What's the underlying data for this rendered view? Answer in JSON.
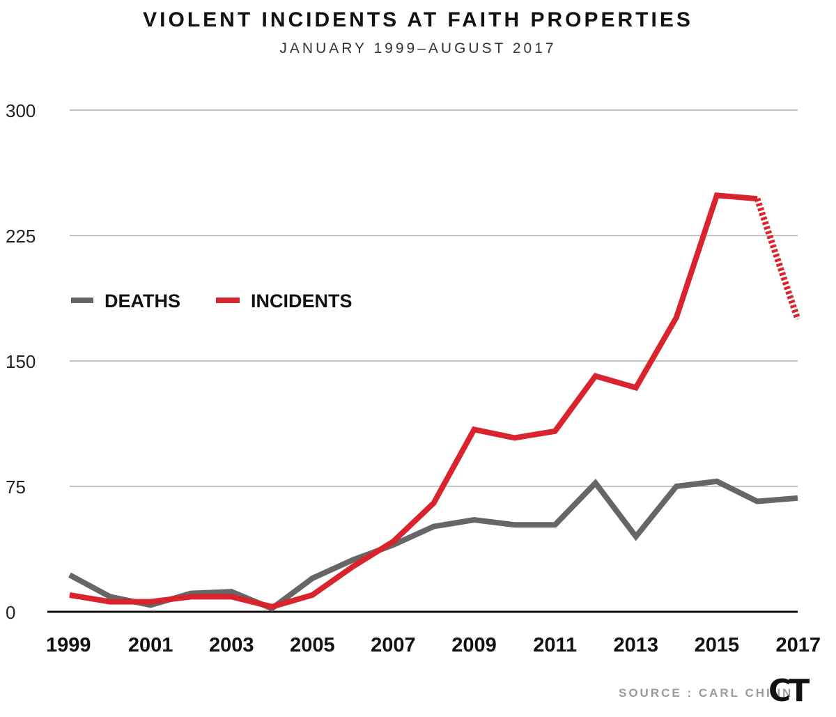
{
  "title": "VIOLENT INCIDENTS AT FAITH PROPERTIES",
  "subtitle": "JANUARY 1999–AUGUST 2017",
  "source": "SOURCE : CARL CHINN",
  "logo": "CT",
  "colors": {
    "deaths": "#666666",
    "incidents": "#d9232d"
  },
  "chart_data": {
    "type": "line",
    "title": "VIOLENT INCIDENTS AT FAITH PROPERTIES",
    "subtitle": "JANUARY 1999–AUGUST 2017",
    "x": [
      1999,
      2000,
      2001,
      2002,
      2003,
      2004,
      2005,
      2006,
      2007,
      2008,
      2009,
      2010,
      2011,
      2012,
      2013,
      2014,
      2015,
      2016,
      2017
    ],
    "x_tick_labels": [
      "1999",
      "2001",
      "2003",
      "2005",
      "2007",
      "2009",
      "2011",
      "2013",
      "2015",
      "2017"
    ],
    "y_ticks": [
      0,
      75,
      150,
      225,
      300
    ],
    "ylim": [
      0,
      300
    ],
    "grid": true,
    "legend_position": "left",
    "series": [
      {
        "name": "DEATHS",
        "values": [
          22,
          9,
          4,
          11,
          12,
          2,
          20,
          31,
          40,
          51,
          55,
          52,
          52,
          77,
          45,
          75,
          78,
          66,
          68
        ]
      },
      {
        "name": "INCIDENTS",
        "values": [
          10,
          6,
          6,
          9,
          9,
          3,
          10,
          27,
          42,
          65,
          109,
          104,
          108,
          141,
          134,
          176,
          249,
          247,
          175
        ],
        "dashed_from": 2016
      }
    ]
  }
}
